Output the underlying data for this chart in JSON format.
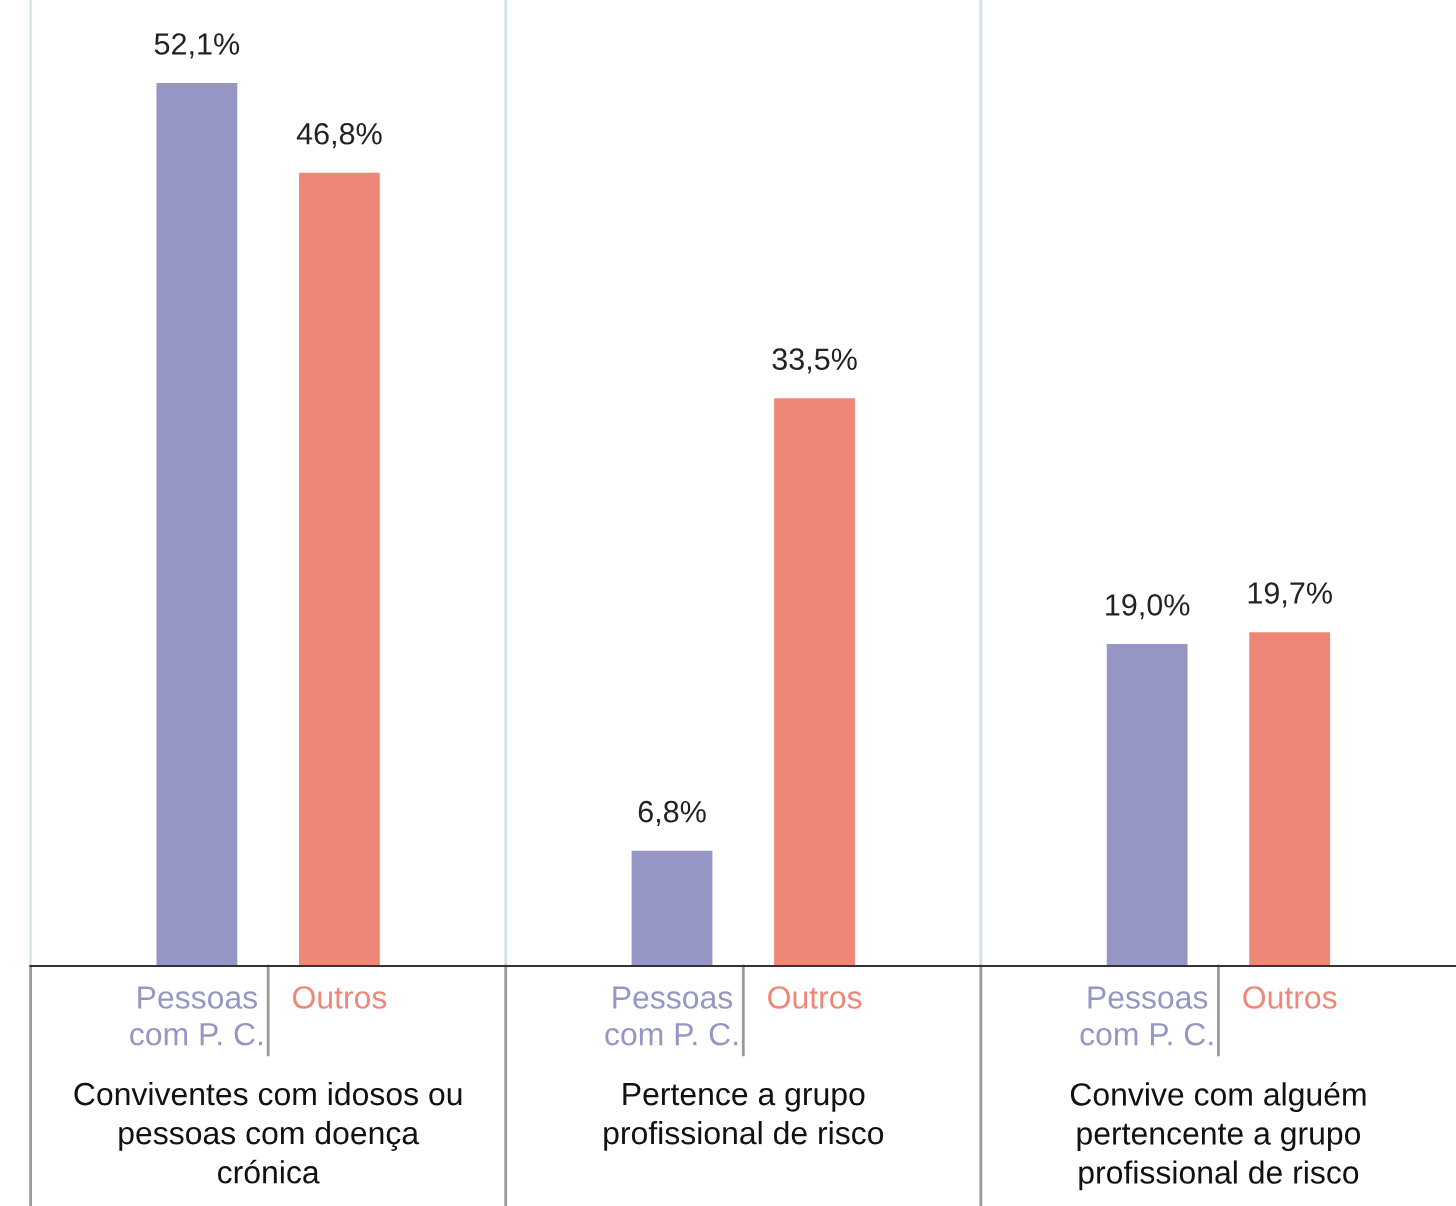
{
  "chart_data": {
    "type": "bar",
    "categories": [
      "Conviventes com idosos ou pessoas com doença crónica",
      "Pertence a grupo profissional de risco",
      "Convive com alguém pertencente a grupo profissional de risco"
    ],
    "series": [
      {
        "name": "Pessoas com P. C.",
        "color": "#9596c4",
        "values": [
          52.1,
          6.8,
          19.0
        ],
        "value_labels": [
          "52,1%",
          "6,8%",
          "19,0%"
        ]
      },
      {
        "name": "Outros",
        "color": "#ef8778",
        "values": [
          46.8,
          33.5,
          19.7
        ],
        "value_labels": [
          "46,8%",
          "33,5%",
          "19,7%"
        ]
      }
    ],
    "ylim": [
      0,
      57
    ],
    "legend": false
  }
}
